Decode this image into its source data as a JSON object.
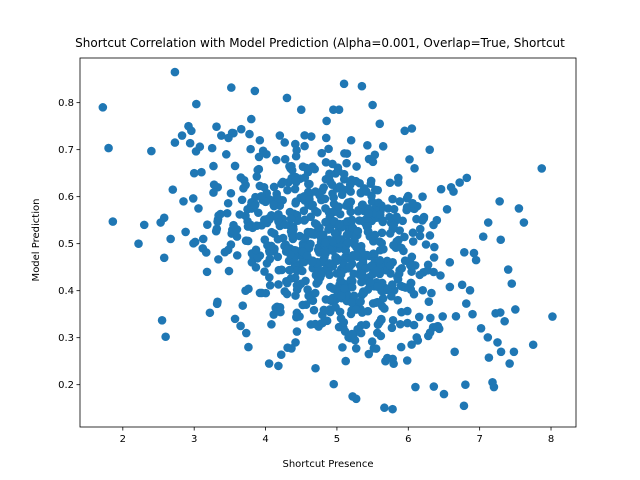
{
  "chart_data": {
    "type": "scatter",
    "title": "Shortcut Correlation with Model Prediction (Alpha=0.001, Overlap=True, Shortcut",
    "xlabel": "Shortcut Presence",
    "ylabel": "Model Prediction",
    "xlim": [
      1.4,
      8.35
    ],
    "ylim": [
      0.11,
      0.895
    ],
    "xticks": [
      2,
      3,
      4,
      5,
      6,
      7,
      8
    ],
    "yticks": [
      0.2,
      0.3,
      0.4,
      0.5,
      0.6,
      0.7,
      0.8
    ],
    "xtick_labels": [
      "2",
      "3",
      "4",
      "5",
      "6",
      "7",
      "8"
    ],
    "ytick_labels": [
      "0.2",
      "0.3",
      "0.4",
      "0.5",
      "0.6",
      "0.7",
      "0.8"
    ],
    "grid": false,
    "legend": null,
    "marker_color": "#1f77b4",
    "points": [
      [
        1.72,
        0.79
      ],
      [
        2.73,
        0.865
      ],
      [
        1.86,
        0.547
      ],
      [
        2.22,
        0.5
      ],
      [
        2.3,
        0.54
      ],
      [
        2.4,
        0.697
      ],
      [
        2.55,
        0.337
      ],
      [
        2.58,
        0.47
      ],
      [
        2.6,
        0.302
      ],
      [
        2.53,
        0.545
      ],
      [
        2.58,
        0.555
      ],
      [
        2.67,
        0.51
      ],
      [
        2.7,
        0.615
      ],
      [
        2.73,
        0.715
      ],
      [
        2.83,
        0.73
      ],
      [
        2.85,
        0.59
      ],
      [
        2.88,
        0.525
      ],
      [
        2.92,
        0.75
      ],
      [
        2.96,
        0.74
      ],
      [
        3.03,
        0.797
      ],
      [
        3.0,
        0.65
      ],
      [
        3.06,
        0.575
      ],
      [
        3.12,
        0.49
      ],
      [
        3.18,
        0.44
      ],
      [
        3.22,
        0.353
      ],
      [
        3.27,
        0.665
      ],
      [
        3.33,
        0.62
      ],
      [
        3.38,
        0.73
      ],
      [
        3.45,
        0.69
      ],
      [
        3.52,
        0.832
      ],
      [
        3.55,
        0.735
      ],
      [
        3.6,
        0.515
      ],
      [
        3.65,
        0.325
      ],
      [
        3.72,
        0.4
      ],
      [
        3.76,
        0.28
      ],
      [
        3.8,
        0.765
      ],
      [
        3.85,
        0.825
      ],
      [
        3.92,
        0.72
      ],
      [
        3.98,
        0.62
      ],
      [
        4.05,
        0.245
      ],
      [
        4.12,
        0.58
      ],
      [
        4.18,
        0.24
      ],
      [
        4.2,
        0.73
      ],
      [
        4.3,
        0.81
      ],
      [
        4.35,
        0.66
      ],
      [
        4.42,
        0.29
      ],
      [
        4.5,
        0.785
      ],
      [
        4.6,
        0.61
      ],
      [
        4.7,
        0.235
      ],
      [
        4.78,
        0.33
      ],
      [
        4.85,
        0.725
      ],
      [
        4.9,
        0.36
      ],
      [
        4.95,
        0.785
      ],
      [
        5.03,
        0.785
      ],
      [
        5.1,
        0.84
      ],
      [
        5.2,
        0.72
      ],
      [
        5.22,
        0.175
      ],
      [
        5.27,
        0.17
      ],
      [
        5.35,
        0.835
      ],
      [
        5.45,
        0.68
      ],
      [
        5.5,
        0.795
      ],
      [
        5.6,
        0.755
      ],
      [
        5.68,
        0.25
      ],
      [
        5.78,
        0.148
      ],
      [
        5.86,
        0.64
      ],
      [
        5.95,
        0.74
      ],
      [
        6.05,
        0.745
      ],
      [
        6.1,
        0.195
      ],
      [
        6.2,
        0.6
      ],
      [
        6.3,
        0.7
      ],
      [
        6.4,
        0.55
      ],
      [
        6.5,
        0.18
      ],
      [
        6.6,
        0.62
      ],
      [
        6.72,
        0.63
      ],
      [
        6.78,
        0.155
      ],
      [
        6.8,
        0.2
      ],
      [
        6.92,
        0.48
      ],
      [
        7.02,
        0.32
      ],
      [
        7.12,
        0.545
      ],
      [
        7.18,
        0.205
      ],
      [
        7.2,
        0.195
      ],
      [
        7.3,
        0.27
      ],
      [
        7.4,
        0.445
      ],
      [
        7.42,
        0.245
      ],
      [
        7.48,
        0.27
      ],
      [
        7.5,
        0.36
      ],
      [
        7.55,
        0.575
      ],
      [
        7.62,
        0.545
      ],
      [
        7.75,
        0.285
      ],
      [
        7.87,
        0.66
      ],
      [
        8.02,
        0.345
      ],
      [
        6.82,
        0.64
      ],
      [
        6.95,
        0.465
      ],
      [
        7.05,
        0.515
      ],
      [
        7.25,
        0.29
      ],
      [
        7.28,
        0.59
      ],
      [
        7.35,
        0.335
      ],
      [
        7.45,
        0.415
      ],
      [
        6.9,
        0.35
      ],
      [
        6.65,
        0.27
      ]
    ],
    "cloud": {
      "count": 760,
      "seed": 12345,
      "center": [
        4.95,
        0.49
      ],
      "spread": [
        0.78,
        0.105
      ],
      "slope": -0.052
    }
  }
}
